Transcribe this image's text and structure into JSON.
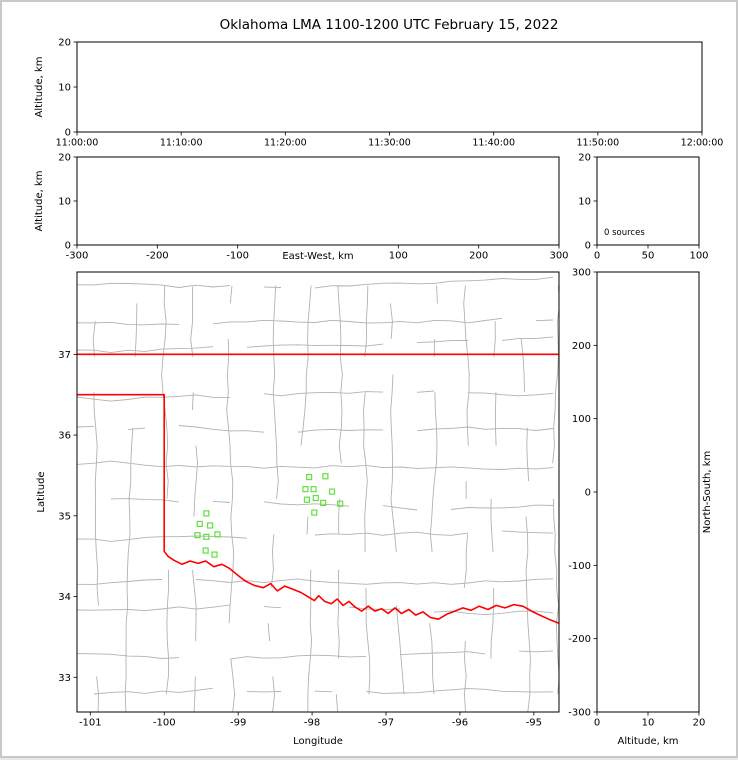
{
  "labels": {
    "title": "Oklahoma LMA 1100-1200 UTC February 15, 2022",
    "altitude_axis": "Altitude, km",
    "east_west_axis": "East-West, km",
    "longitude_axis": "Longitude",
    "latitude_axis": "Latitude",
    "north_south_axis": "North-South, km",
    "sources_annotation": "0 sources"
  },
  "colors": {
    "axis": "#000000",
    "county_line": "#b2b2b2",
    "state_border": "#ff0000",
    "source_marker": "#5fe23c",
    "page_border": "#c9c9c9",
    "background": "#ffffff"
  },
  "chart_data": {
    "type": "scatter",
    "title": "Oklahoma LMA 1100-1200 UTC February 15, 2022",
    "panels": {
      "time_height": {
        "x_tick_labels": [
          "11:00:00",
          "11:10:00",
          "11:20:00",
          "11:30:00",
          "11:40:00",
          "11:50:00",
          "12:00:00"
        ],
        "y_label": "Altitude, km",
        "y_ticks": [
          0,
          10,
          20
        ],
        "y_range": [
          0,
          20
        ],
        "points": []
      },
      "east_west_height": {
        "x_label": "East-West, km",
        "x_ticks": [
          -300,
          -200,
          -100,
          100,
          200,
          300
        ],
        "x_range": [
          -300,
          300
        ],
        "y_label": "Altitude, km",
        "y_ticks": [
          0,
          10,
          20
        ],
        "y_range": [
          0,
          20
        ],
        "points": []
      },
      "altitude_histogram": {
        "x_ticks": [
          0,
          50,
          100
        ],
        "x_range": [
          0,
          100
        ],
        "y_ticks": [
          20,
          10,
          0
        ],
        "y_range": [
          0,
          20
        ],
        "source_count": 0,
        "annotation": "0 sources"
      },
      "plan_view": {
        "x_label": "Longitude",
        "x_ticks": [
          -101,
          -100,
          -99,
          -98,
          -97,
          -96,
          -95
        ],
        "x_range": [
          -101.18,
          -94.66
        ],
        "y_label": "Latitude",
        "y_ticks": [
          33,
          34,
          35,
          36,
          37
        ],
        "y_range": [
          32.57,
          38.02
        ],
        "sources_lon_lat": [
          [
            -99.43,
            35.03
          ],
          [
            -99.52,
            34.9
          ],
          [
            -99.38,
            34.88
          ],
          [
            -99.55,
            34.76
          ],
          [
            -99.43,
            34.74
          ],
          [
            -99.28,
            34.77
          ],
          [
            -99.44,
            34.57
          ],
          [
            -99.32,
            34.52
          ],
          [
            -98.04,
            35.48
          ],
          [
            -97.82,
            35.49
          ],
          [
            -98.09,
            35.33
          ],
          [
            -97.98,
            35.33
          ],
          [
            -97.73,
            35.3
          ],
          [
            -98.07,
            35.2
          ],
          [
            -97.95,
            35.22
          ],
          [
            -97.85,
            35.16
          ],
          [
            -97.62,
            35.15
          ],
          [
            -97.97,
            35.04
          ]
        ]
      },
      "north_south_height": {
        "x_label": "Altitude, km",
        "x_ticks": [
          0,
          10,
          20
        ],
        "x_range": [
          0,
          20
        ],
        "y_label": "North-South, km",
        "y_ticks": [
          300,
          200,
          100,
          0,
          -100,
          -200,
          -300
        ],
        "y_range": [
          -300,
          300
        ],
        "points": []
      }
    },
    "oklahoma_border": {
      "north_lat": 37.0,
      "panhandle_south_lat": 36.5,
      "panhandle_east_lon": -100.0,
      "red_river_lon_lat": [
        [
          -100.0,
          34.56
        ],
        [
          -99.95,
          34.5
        ],
        [
          -99.87,
          34.45
        ],
        [
          -99.76,
          34.4
        ],
        [
          -99.65,
          34.44
        ],
        [
          -99.54,
          34.41
        ],
        [
          -99.44,
          34.44
        ],
        [
          -99.33,
          34.37
        ],
        [
          -99.22,
          34.4
        ],
        [
          -99.12,
          34.35
        ],
        [
          -99.0,
          34.26
        ],
        [
          -98.9,
          34.19
        ],
        [
          -98.79,
          34.14
        ],
        [
          -98.66,
          34.11
        ],
        [
          -98.56,
          34.16
        ],
        [
          -98.47,
          34.07
        ],
        [
          -98.37,
          34.13
        ],
        [
          -98.26,
          34.09
        ],
        [
          -98.15,
          34.05
        ],
        [
          -98.06,
          34.0
        ],
        [
          -97.97,
          33.95
        ],
        [
          -97.91,
          34.01
        ],
        [
          -97.83,
          33.94
        ],
        [
          -97.74,
          33.91
        ],
        [
          -97.66,
          33.97
        ],
        [
          -97.58,
          33.89
        ],
        [
          -97.5,
          33.94
        ],
        [
          -97.42,
          33.87
        ],
        [
          -97.33,
          33.82
        ],
        [
          -97.24,
          33.88
        ],
        [
          -97.15,
          33.82
        ],
        [
          -97.06,
          33.85
        ],
        [
          -96.97,
          33.79
        ],
        [
          -96.88,
          33.86
        ],
        [
          -96.79,
          33.79
        ],
        [
          -96.69,
          33.84
        ],
        [
          -96.6,
          33.77
        ],
        [
          -96.5,
          33.81
        ],
        [
          -96.4,
          33.74
        ],
        [
          -96.29,
          33.72
        ],
        [
          -96.18,
          33.78
        ],
        [
          -96.07,
          33.82
        ],
        [
          -95.96,
          33.86
        ],
        [
          -95.85,
          33.83
        ],
        [
          -95.74,
          33.88
        ],
        [
          -95.62,
          33.84
        ],
        [
          -95.51,
          33.89
        ],
        [
          -95.39,
          33.86
        ],
        [
          -95.27,
          33.9
        ],
        [
          -95.15,
          33.88
        ],
        [
          -95.03,
          33.82
        ],
        [
          -94.92,
          33.77
        ],
        [
          -94.8,
          33.72
        ],
        [
          -94.66,
          33.67
        ]
      ]
    },
    "county_grid": {
      "lon_step": 0.46,
      "lat_step": 0.44,
      "jitter": 0.06,
      "skip_probability": 0.12,
      "seed": 20220215
    }
  }
}
